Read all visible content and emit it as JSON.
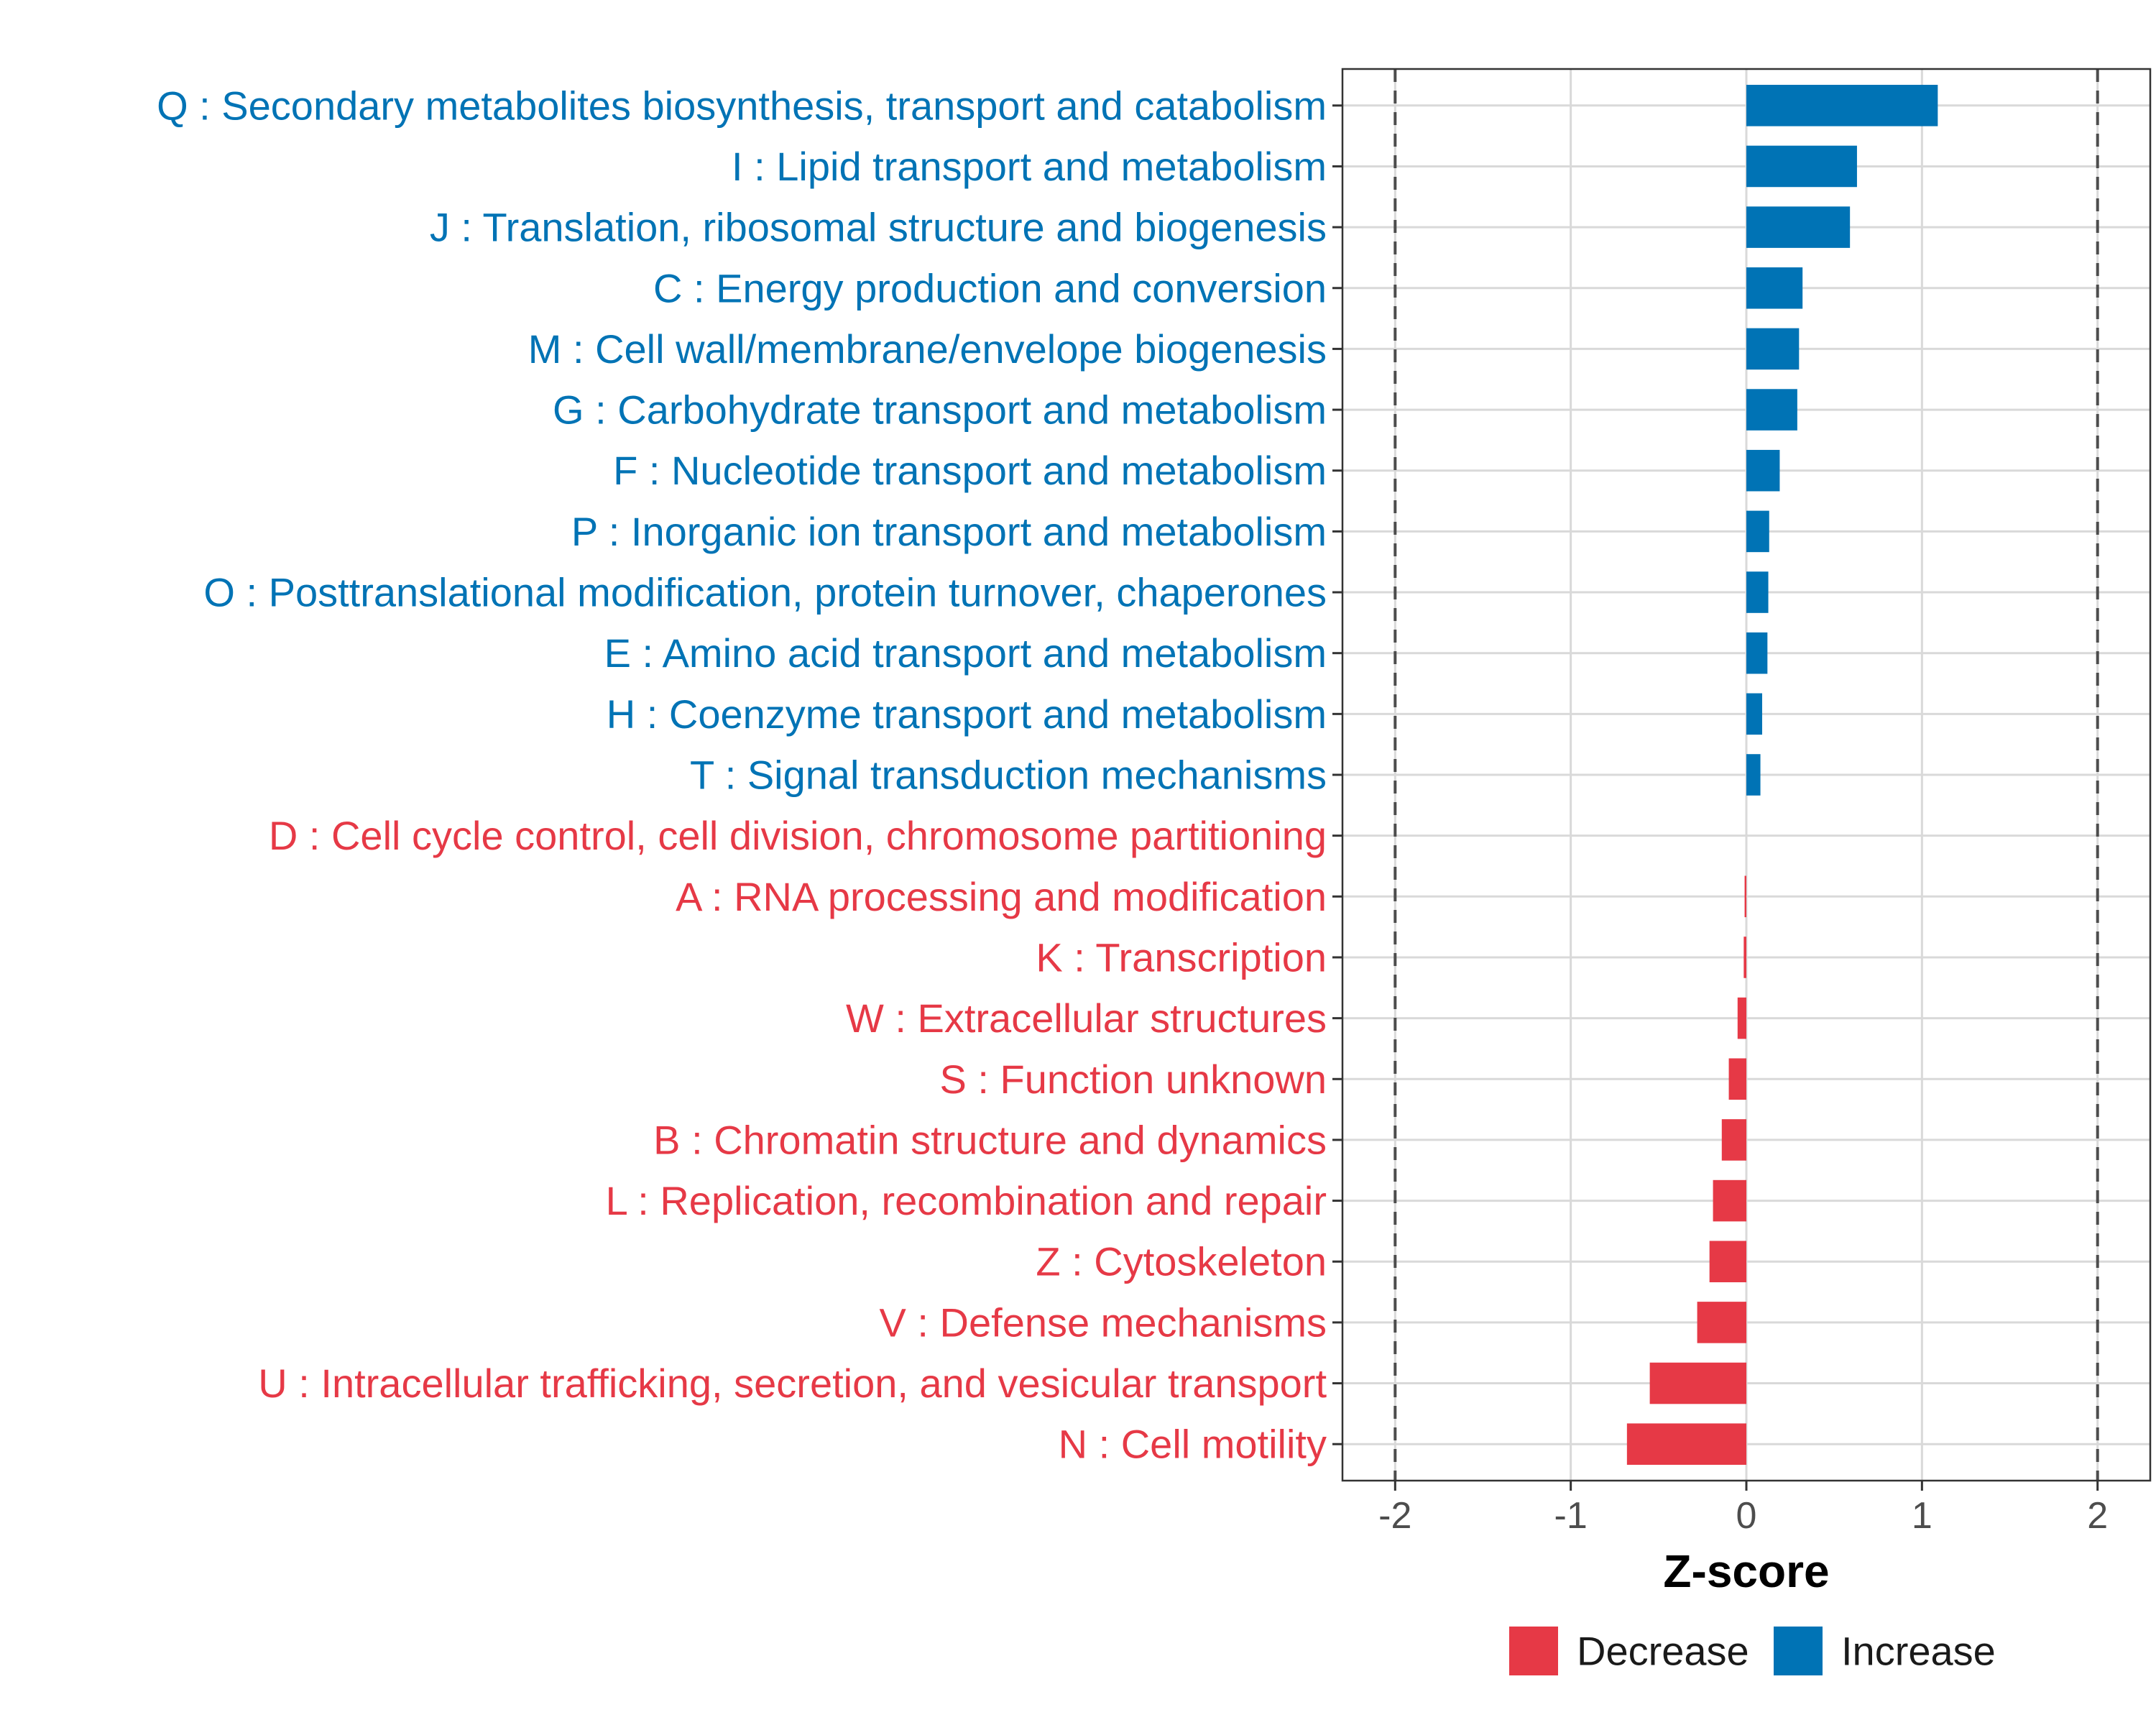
{
  "chart_data": {
    "type": "bar",
    "orientation": "horizontal",
    "xlabel": "Z-score",
    "xlim": [
      -2.3,
      2.3
    ],
    "xticks": [
      -2,
      -1,
      0,
      1,
      2
    ],
    "xtick_labels": [
      "-2",
      "-1",
      "0",
      "1",
      "2"
    ],
    "reference_lines": [
      -2,
      2
    ],
    "grid": true,
    "legend_position": "bottom",
    "colors": {
      "Increase": "#0073b5",
      "Decrease": "#e63946",
      "grid": "#d9d9d9",
      "border": "#333333",
      "refline": "#4d4d4d"
    },
    "legend": [
      {
        "label": "Decrease",
        "color": "#e63946"
      },
      {
        "label": "Increase",
        "color": "#0073b5"
      }
    ],
    "categories": [
      {
        "label": "Q : Secondary metabolites biosynthesis, transport and catabolism",
        "value": 1.09,
        "direction": "Increase"
      },
      {
        "label": "I : Lipid transport and metabolism",
        "value": 0.63,
        "direction": "Increase"
      },
      {
        "label": "J : Translation, ribosomal structure and biogenesis",
        "value": 0.59,
        "direction": "Increase"
      },
      {
        "label": "C : Energy production and conversion",
        "value": 0.32,
        "direction": "Increase"
      },
      {
        "label": "M : Cell wall/membrane/envelope biogenesis",
        "value": 0.3,
        "direction": "Increase"
      },
      {
        "label": "G : Carbohydrate transport and metabolism",
        "value": 0.29,
        "direction": "Increase"
      },
      {
        "label": "F : Nucleotide transport and metabolism",
        "value": 0.19,
        "direction": "Increase"
      },
      {
        "label": "P : Inorganic ion transport and metabolism",
        "value": 0.13,
        "direction": "Increase"
      },
      {
        "label": "O : Posttranslational modification, protein turnover, chaperones",
        "value": 0.125,
        "direction": "Increase"
      },
      {
        "label": "E : Amino acid transport and metabolism",
        "value": 0.12,
        "direction": "Increase"
      },
      {
        "label": "H : Coenzyme transport and metabolism",
        "value": 0.09,
        "direction": "Increase"
      },
      {
        "label": "T : Signal transduction mechanisms",
        "value": 0.08,
        "direction": "Increase"
      },
      {
        "label": "D : Cell cycle control, cell division, chromosome partitioning",
        "value": 0.0,
        "direction": "Decrease"
      },
      {
        "label": "A : RNA processing and modification",
        "value": -0.01,
        "direction": "Decrease"
      },
      {
        "label": "K : Transcription",
        "value": -0.015,
        "direction": "Decrease"
      },
      {
        "label": "W : Extracellular structures",
        "value": -0.05,
        "direction": "Decrease"
      },
      {
        "label": "S : Function unknown",
        "value": -0.1,
        "direction": "Decrease"
      },
      {
        "label": "B : Chromatin structure and dynamics",
        "value": -0.14,
        "direction": "Decrease"
      },
      {
        "label": "L : Replication, recombination and repair",
        "value": -0.19,
        "direction": "Decrease"
      },
      {
        "label": "Z : Cytoskeleton",
        "value": -0.21,
        "direction": "Decrease"
      },
      {
        "label": "V : Defense mechanisms",
        "value": -0.28,
        "direction": "Decrease"
      },
      {
        "label": "U : Intracellular trafficking, secretion, and vesicular transport",
        "value": -0.55,
        "direction": "Decrease"
      },
      {
        "label": "N : Cell motility",
        "value": -0.68,
        "direction": "Decrease"
      }
    ]
  }
}
